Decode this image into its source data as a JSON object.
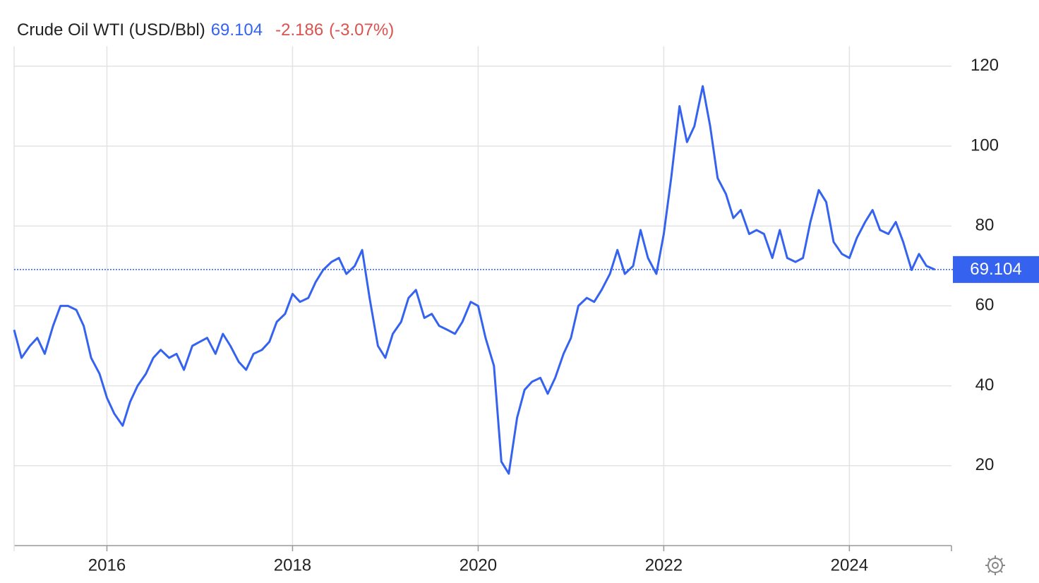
{
  "chart_data": {
    "type": "line",
    "title": "Crude Oil WTI (USD/Bbl)",
    "current_value": 69.104,
    "change": -2.186,
    "change_percent": "(-3.07%)",
    "color": "#3563f0",
    "x": [
      2015.0,
      2015.08,
      2015.17,
      2015.25,
      2015.33,
      2015.42,
      2015.5,
      2015.58,
      2015.67,
      2015.75,
      2015.83,
      2015.92,
      2016.0,
      2016.08,
      2016.17,
      2016.25,
      2016.33,
      2016.42,
      2016.5,
      2016.58,
      2016.67,
      2016.75,
      2016.83,
      2016.92,
      2017.0,
      2017.08,
      2017.17,
      2017.25,
      2017.33,
      2017.42,
      2017.5,
      2017.58,
      2017.67,
      2017.75,
      2017.83,
      2017.92,
      2018.0,
      2018.08,
      2018.17,
      2018.25,
      2018.33,
      2018.42,
      2018.5,
      2018.58,
      2018.67,
      2018.75,
      2018.83,
      2018.92,
      2019.0,
      2019.08,
      2019.17,
      2019.25,
      2019.33,
      2019.42,
      2019.5,
      2019.58,
      2019.67,
      2019.75,
      2019.83,
      2019.92,
      2020.0,
      2020.08,
      2020.17,
      2020.25,
      2020.33,
      2020.42,
      2020.5,
      2020.58,
      2020.67,
      2020.75,
      2020.83,
      2020.92,
      2021.0,
      2021.08,
      2021.17,
      2021.25,
      2021.33,
      2021.42,
      2021.5,
      2021.58,
      2021.67,
      2021.75,
      2021.83,
      2021.92,
      2022.0,
      2022.08,
      2022.17,
      2022.25,
      2022.33,
      2022.42,
      2022.5,
      2022.58,
      2022.67,
      2022.75,
      2022.83,
      2022.92,
      2023.0,
      2023.08,
      2023.17,
      2023.25,
      2023.33,
      2023.42,
      2023.5,
      2023.58,
      2023.67,
      2023.75,
      2023.83,
      2023.92,
      2024.0,
      2024.08,
      2024.17,
      2024.25,
      2024.33,
      2024.42,
      2024.5,
      2024.58,
      2024.67,
      2024.75,
      2024.83,
      2024.92
    ],
    "values": [
      54,
      47,
      50,
      52,
      48,
      55,
      60,
      60,
      59,
      55,
      47,
      43,
      37,
      33,
      30,
      36,
      40,
      43,
      47,
      49,
      47,
      48,
      44,
      50,
      51,
      52,
      48,
      53,
      50,
      46,
      44,
      48,
      49,
      51,
      56,
      58,
      63,
      61,
      62,
      66,
      69,
      71,
      72,
      68,
      70,
      74,
      62,
      50,
      47,
      53,
      56,
      62,
      64,
      57,
      58,
      55,
      54,
      53,
      56,
      61,
      60,
      52,
      45,
      21,
      18,
      32,
      39,
      41,
      42,
      38,
      42,
      48,
      52,
      60,
      62,
      61,
      64,
      68,
      74,
      68,
      70,
      79,
      72,
      68,
      78,
      92,
      110,
      101,
      105,
      115,
      105,
      92,
      88,
      82,
      84,
      78,
      79,
      78,
      72,
      79,
      72,
      71,
      72,
      81,
      89,
      86,
      76,
      73,
      72,
      77,
      81,
      84,
      79,
      78,
      81,
      76,
      69,
      73,
      70,
      69.1
    ],
    "xlim": [
      2015,
      2025.1
    ],
    "xticks": [
      2016,
      2018,
      2020,
      2022,
      2024
    ],
    "ylim": [
      0,
      125
    ],
    "yticks": [
      20,
      40,
      60,
      80,
      100,
      120
    ],
    "grid": true
  }
}
